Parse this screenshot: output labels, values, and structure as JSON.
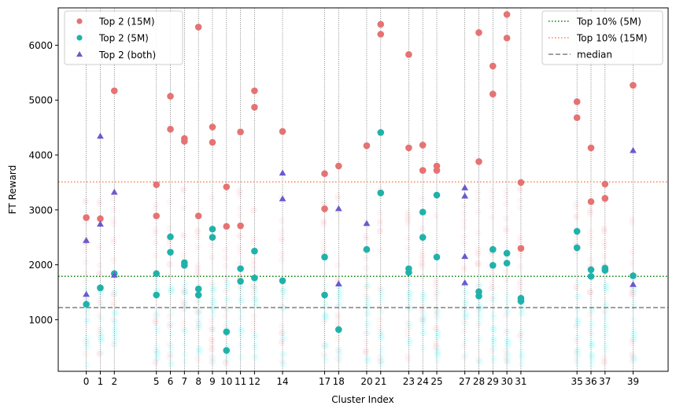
{
  "chart_data": {
    "type": "scatter",
    "title": "",
    "xlabel": "Cluster Index",
    "ylabel": "FT Reward",
    "xlim": [
      -2,
      41.5
    ],
    "ylim": [
      60,
      6680
    ],
    "yticks": [
      1000,
      2000,
      3000,
      4000,
      5000,
      6000
    ],
    "clusters": [
      0,
      1,
      2,
      5,
      6,
      7,
      8,
      9,
      10,
      11,
      12,
      14,
      17,
      18,
      20,
      21,
      23,
      24,
      25,
      27,
      28,
      29,
      30,
      31,
      35,
      36,
      37,
      39
    ],
    "series": [
      {
        "name": "Top 2 (15M)",
        "color": "#e57373",
        "marker": "circle",
        "points": [
          [
            0,
            2860
          ],
          [
            1,
            2840
          ],
          [
            2,
            5170
          ],
          [
            5,
            3460
          ],
          [
            5,
            2890
          ],
          [
            6,
            5070
          ],
          [
            6,
            4470
          ],
          [
            7,
            4300
          ],
          [
            7,
            4250
          ],
          [
            8,
            6330
          ],
          [
            8,
            2890
          ],
          [
            9,
            4510
          ],
          [
            9,
            4230
          ],
          [
            10,
            3420
          ],
          [
            10,
            2700
          ],
          [
            11,
            4420
          ],
          [
            11,
            2710
          ],
          [
            12,
            5170
          ],
          [
            12,
            4870
          ],
          [
            14,
            4430
          ],
          [
            17,
            3660
          ],
          [
            17,
            3020
          ],
          [
            18,
            3800
          ],
          [
            20,
            4170
          ],
          [
            21,
            6380
          ],
          [
            21,
            6200
          ],
          [
            23,
            5830
          ],
          [
            23,
            4130
          ],
          [
            24,
            4180
          ],
          [
            24,
            3720
          ],
          [
            25,
            3800
          ],
          [
            25,
            3720
          ],
          [
            28,
            6230
          ],
          [
            28,
            3880
          ],
          [
            29,
            5620
          ],
          [
            29,
            5110
          ],
          [
            30,
            6560
          ],
          [
            30,
            6130
          ],
          [
            31,
            3500
          ],
          [
            31,
            2300
          ],
          [
            35,
            4970
          ],
          [
            35,
            4680
          ],
          [
            36,
            4130
          ],
          [
            36,
            3150
          ],
          [
            37,
            3470
          ],
          [
            37,
            3210
          ],
          [
            39,
            5270
          ]
        ]
      },
      {
        "name": "Top 2 (5M)",
        "color": "#20b2aa",
        "marker": "circle",
        "points": [
          [
            0,
            1280
          ],
          [
            1,
            1580
          ],
          [
            2,
            1840
          ],
          [
            5,
            1840
          ],
          [
            5,
            1450
          ],
          [
            6,
            2510
          ],
          [
            6,
            2230
          ],
          [
            7,
            2040
          ],
          [
            7,
            1990
          ],
          [
            8,
            1560
          ],
          [
            8,
            1450
          ],
          [
            9,
            2650
          ],
          [
            9,
            2500
          ],
          [
            10,
            780
          ],
          [
            10,
            440
          ],
          [
            11,
            1930
          ],
          [
            11,
            1700
          ],
          [
            12,
            2250
          ],
          [
            12,
            1760
          ],
          [
            14,
            1710
          ],
          [
            17,
            2140
          ],
          [
            17,
            1450
          ],
          [
            18,
            820
          ],
          [
            20,
            2280
          ],
          [
            21,
            4410
          ],
          [
            21,
            3310
          ],
          [
            23,
            1930
          ],
          [
            23,
            1860
          ],
          [
            24,
            2960
          ],
          [
            24,
            2500
          ],
          [
            25,
            3270
          ],
          [
            25,
            2140
          ],
          [
            28,
            1510
          ],
          [
            28,
            1430
          ],
          [
            29,
            2280
          ],
          [
            29,
            1990
          ],
          [
            30,
            2210
          ],
          [
            30,
            2030
          ],
          [
            31,
            1390
          ],
          [
            31,
            1340
          ],
          [
            35,
            2610
          ],
          [
            35,
            2310
          ],
          [
            36,
            1910
          ],
          [
            36,
            1790
          ],
          [
            37,
            1940
          ],
          [
            37,
            1900
          ],
          [
            39,
            1800
          ]
        ]
      },
      {
        "name": "Top 2 (both)",
        "color": "#6a5acd",
        "marker": "triangle",
        "points": [
          [
            0,
            2440
          ],
          [
            0,
            1460
          ],
          [
            1,
            4340
          ],
          [
            1,
            2740
          ],
          [
            2,
            3320
          ],
          [
            2,
            1810
          ],
          [
            14,
            3670
          ],
          [
            14,
            3200
          ],
          [
            18,
            3020
          ],
          [
            18,
            1650
          ],
          [
            20,
            2750
          ],
          [
            27,
            3400
          ],
          [
            27,
            3250
          ],
          [
            27,
            2150
          ],
          [
            27,
            1670
          ],
          [
            39,
            4080
          ],
          [
            39,
            1640
          ]
        ]
      }
    ],
    "reference_lines": [
      {
        "name": "Top 10% (5M)",
        "value": 1790,
        "color": "#008000",
        "style": "dotted"
      },
      {
        "name": "Top 10% (15M)",
        "value": 3510,
        "color": "#ff7f50",
        "style": "dotted"
      },
      {
        "name": "median",
        "value": 1220,
        "color": "#808080",
        "style": "dashed"
      }
    ],
    "legends": {
      "left": {
        "position": "top-left",
        "entries": [
          "Top 2 (15M)",
          "Top 2 (5M)",
          "Top 2 (both)"
        ]
      },
      "right": {
        "position": "top-right",
        "entries": [
          "Top 10% (5M)",
          "Top 10% (15M)",
          "median"
        ]
      }
    }
  }
}
